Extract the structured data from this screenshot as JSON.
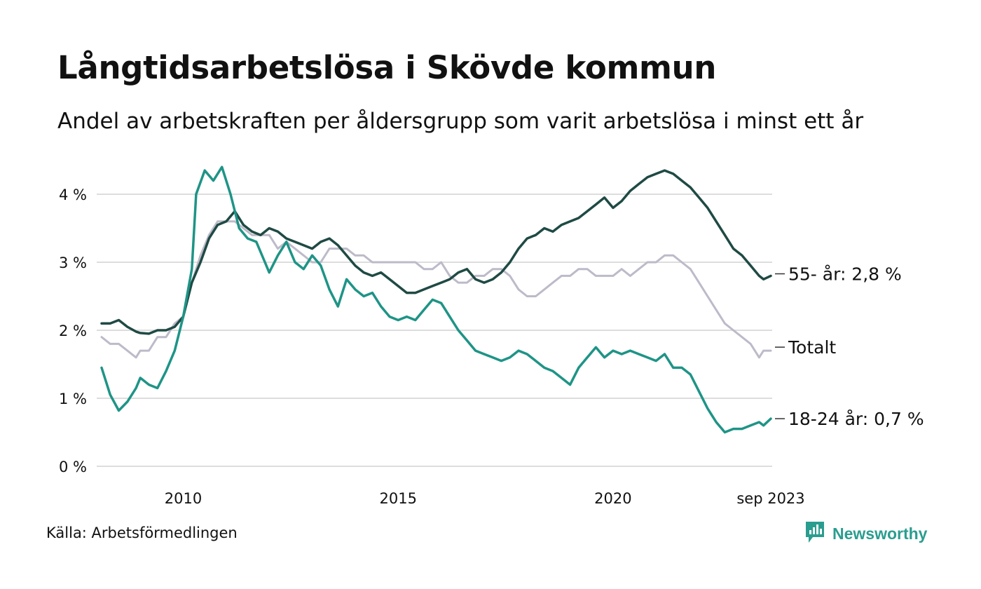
{
  "header": {
    "title": "Långtidsarbetslösa i Skövde kommun",
    "subtitle": "Andel av arbetskraften per åldersgrupp som varit arbetslösa i minst ett år"
  },
  "footer": {
    "source": "Källa: Arbetsförmedlingen",
    "brand": "Newsworthy"
  },
  "colors": {
    "s55": "#1f4a44",
    "total": "#bdbac9",
    "young": "#1e9486",
    "grid": "#dddddd",
    "brand": "#2a9d8f"
  },
  "icons": {
    "brand_logo": "newsworthy-logo-icon"
  },
  "chart_data": {
    "type": "line",
    "title": "Långtidsarbetslösa i Skövde kommun",
    "subtitle": "Andel av arbetskraften per åldersgrupp som varit arbetslösa i minst ett år",
    "xlabel": "",
    "ylabel": "",
    "xlim": [
      2008.1,
      2023.67
    ],
    "ylim": [
      0,
      4.4
    ],
    "x_ticks": [
      {
        "value": 2010,
        "label": "2010"
      },
      {
        "value": 2015,
        "label": "2015"
      },
      {
        "value": 2020,
        "label": "2020"
      },
      {
        "value": 2023.67,
        "label": "sep 2023"
      }
    ],
    "y_ticks": [
      {
        "value": 0,
        "label": "0 %"
      },
      {
        "value": 1,
        "label": "1 %"
      },
      {
        "value": 2,
        "label": "2 %"
      },
      {
        "value": 3,
        "label": "3 %"
      },
      {
        "value": 4,
        "label": "4 %"
      }
    ],
    "grid": true,
    "series": [
      {
        "name": "Totalt",
        "label": "Totalt",
        "color_key": "total",
        "points": [
          [
            2008.1,
            1.9
          ],
          [
            2008.3,
            1.8
          ],
          [
            2008.5,
            1.8
          ],
          [
            2008.7,
            1.7
          ],
          [
            2008.9,
            1.6
          ],
          [
            2009.0,
            1.7
          ],
          [
            2009.2,
            1.7
          ],
          [
            2009.4,
            1.9
          ],
          [
            2009.6,
            1.9
          ],
          [
            2009.8,
            2.1
          ],
          [
            2010.0,
            2.2
          ],
          [
            2010.2,
            2.7
          ],
          [
            2010.4,
            3.1
          ],
          [
            2010.6,
            3.4
          ],
          [
            2010.8,
            3.6
          ],
          [
            2011.0,
            3.6
          ],
          [
            2011.2,
            3.6
          ],
          [
            2011.4,
            3.5
          ],
          [
            2011.6,
            3.4
          ],
          [
            2011.8,
            3.4
          ],
          [
            2012.0,
            3.4
          ],
          [
            2012.2,
            3.2
          ],
          [
            2012.4,
            3.3
          ],
          [
            2012.6,
            3.2
          ],
          [
            2012.8,
            3.1
          ],
          [
            2013.0,
            3.0
          ],
          [
            2013.2,
            3.0
          ],
          [
            2013.4,
            3.2
          ],
          [
            2013.6,
            3.2
          ],
          [
            2013.8,
            3.2
          ],
          [
            2014.0,
            3.1
          ],
          [
            2014.2,
            3.1
          ],
          [
            2014.4,
            3.0
          ],
          [
            2014.6,
            3.0
          ],
          [
            2014.8,
            3.0
          ],
          [
            2015.0,
            3.0
          ],
          [
            2015.2,
            3.0
          ],
          [
            2015.4,
            3.0
          ],
          [
            2015.6,
            2.9
          ],
          [
            2015.8,
            2.9
          ],
          [
            2016.0,
            3.0
          ],
          [
            2016.2,
            2.8
          ],
          [
            2016.4,
            2.7
          ],
          [
            2016.6,
            2.7
          ],
          [
            2016.8,
            2.8
          ],
          [
            2017.0,
            2.8
          ],
          [
            2017.2,
            2.9
          ],
          [
            2017.4,
            2.9
          ],
          [
            2017.6,
            2.8
          ],
          [
            2017.8,
            2.6
          ],
          [
            2018.0,
            2.5
          ],
          [
            2018.2,
            2.5
          ],
          [
            2018.4,
            2.6
          ],
          [
            2018.6,
            2.7
          ],
          [
            2018.8,
            2.8
          ],
          [
            2019.0,
            2.8
          ],
          [
            2019.2,
            2.9
          ],
          [
            2019.4,
            2.9
          ],
          [
            2019.6,
            2.8
          ],
          [
            2019.8,
            2.8
          ],
          [
            2020.0,
            2.8
          ],
          [
            2020.2,
            2.9
          ],
          [
            2020.4,
            2.8
          ],
          [
            2020.6,
            2.9
          ],
          [
            2020.8,
            3.0
          ],
          [
            2021.0,
            3.0
          ],
          [
            2021.2,
            3.1
          ],
          [
            2021.4,
            3.1
          ],
          [
            2021.6,
            3.0
          ],
          [
            2021.8,
            2.9
          ],
          [
            2022.0,
            2.7
          ],
          [
            2022.2,
            2.5
          ],
          [
            2022.4,
            2.3
          ],
          [
            2022.6,
            2.1
          ],
          [
            2022.8,
            2.0
          ],
          [
            2023.0,
            1.9
          ],
          [
            2023.2,
            1.8
          ],
          [
            2023.4,
            1.6
          ],
          [
            2023.5,
            1.7
          ],
          [
            2023.67,
            1.7
          ]
        ]
      },
      {
        "name": "55- år",
        "label": "55- år: 2,8 %",
        "color_key": "s55",
        "points": [
          [
            2008.1,
            2.1
          ],
          [
            2008.3,
            2.1
          ],
          [
            2008.5,
            2.15
          ],
          [
            2008.7,
            2.05
          ],
          [
            2008.9,
            1.98
          ],
          [
            2009.0,
            1.96
          ],
          [
            2009.2,
            1.95
          ],
          [
            2009.4,
            2.0
          ],
          [
            2009.6,
            2.0
          ],
          [
            2009.8,
            2.05
          ],
          [
            2010.0,
            2.2
          ],
          [
            2010.2,
            2.7
          ],
          [
            2010.4,
            3.0
          ],
          [
            2010.6,
            3.35
          ],
          [
            2010.8,
            3.55
          ],
          [
            2011.0,
            3.6
          ],
          [
            2011.2,
            3.75
          ],
          [
            2011.4,
            3.55
          ],
          [
            2011.6,
            3.45
          ],
          [
            2011.8,
            3.4
          ],
          [
            2012.0,
            3.5
          ],
          [
            2012.2,
            3.45
          ],
          [
            2012.4,
            3.35
          ],
          [
            2012.6,
            3.3
          ],
          [
            2012.8,
            3.25
          ],
          [
            2013.0,
            3.2
          ],
          [
            2013.2,
            3.3
          ],
          [
            2013.4,
            3.35
          ],
          [
            2013.6,
            3.25
          ],
          [
            2013.8,
            3.1
          ],
          [
            2014.0,
            2.95
          ],
          [
            2014.2,
            2.85
          ],
          [
            2014.4,
            2.8
          ],
          [
            2014.6,
            2.85
          ],
          [
            2014.8,
            2.75
          ],
          [
            2015.0,
            2.65
          ],
          [
            2015.2,
            2.55
          ],
          [
            2015.4,
            2.55
          ],
          [
            2015.6,
            2.6
          ],
          [
            2015.8,
            2.65
          ],
          [
            2016.0,
            2.7
          ],
          [
            2016.2,
            2.75
          ],
          [
            2016.4,
            2.85
          ],
          [
            2016.6,
            2.9
          ],
          [
            2016.8,
            2.75
          ],
          [
            2017.0,
            2.7
          ],
          [
            2017.2,
            2.75
          ],
          [
            2017.4,
            2.85
          ],
          [
            2017.6,
            3.0
          ],
          [
            2017.8,
            3.2
          ],
          [
            2018.0,
            3.35
          ],
          [
            2018.2,
            3.4
          ],
          [
            2018.4,
            3.5
          ],
          [
            2018.6,
            3.45
          ],
          [
            2018.8,
            3.55
          ],
          [
            2019.0,
            3.6
          ],
          [
            2019.2,
            3.65
          ],
          [
            2019.4,
            3.75
          ],
          [
            2019.6,
            3.85
          ],
          [
            2019.8,
            3.95
          ],
          [
            2020.0,
            3.8
          ],
          [
            2020.2,
            3.9
          ],
          [
            2020.4,
            4.05
          ],
          [
            2020.6,
            4.15
          ],
          [
            2020.8,
            4.25
          ],
          [
            2021.0,
            4.3
          ],
          [
            2021.2,
            4.35
          ],
          [
            2021.4,
            4.3
          ],
          [
            2021.6,
            4.2
          ],
          [
            2021.8,
            4.1
          ],
          [
            2022.0,
            3.95
          ],
          [
            2022.2,
            3.8
          ],
          [
            2022.4,
            3.6
          ],
          [
            2022.6,
            3.4
          ],
          [
            2022.8,
            3.2
          ],
          [
            2023.0,
            3.1
          ],
          [
            2023.2,
            2.95
          ],
          [
            2023.4,
            2.8
          ],
          [
            2023.5,
            2.75
          ],
          [
            2023.67,
            2.8
          ]
        ]
      },
      {
        "name": "18-24 år",
        "label": "18-24 år: 0,7 %",
        "color_key": "young",
        "points": [
          [
            2008.1,
            1.45
          ],
          [
            2008.3,
            1.05
          ],
          [
            2008.5,
            0.82
          ],
          [
            2008.7,
            0.95
          ],
          [
            2008.9,
            1.15
          ],
          [
            2009.0,
            1.3
          ],
          [
            2009.2,
            1.2
          ],
          [
            2009.4,
            1.15
          ],
          [
            2009.6,
            1.4
          ],
          [
            2009.8,
            1.7
          ],
          [
            2010.0,
            2.2
          ],
          [
            2010.2,
            2.9
          ],
          [
            2010.3,
            4.0
          ],
          [
            2010.5,
            4.35
          ],
          [
            2010.7,
            4.2
          ],
          [
            2010.9,
            4.4
          ],
          [
            2011.1,
            4.0
          ],
          [
            2011.3,
            3.5
          ],
          [
            2011.5,
            3.35
          ],
          [
            2011.7,
            3.3
          ],
          [
            2011.9,
            3.0
          ],
          [
            2012.0,
            2.85
          ],
          [
            2012.2,
            3.1
          ],
          [
            2012.4,
            3.3
          ],
          [
            2012.6,
            3.0
          ],
          [
            2012.8,
            2.9
          ],
          [
            2013.0,
            3.1
          ],
          [
            2013.2,
            2.95
          ],
          [
            2013.4,
            2.6
          ],
          [
            2013.6,
            2.35
          ],
          [
            2013.8,
            2.75
          ],
          [
            2014.0,
            2.6
          ],
          [
            2014.2,
            2.5
          ],
          [
            2014.4,
            2.55
          ],
          [
            2014.6,
            2.35
          ],
          [
            2014.8,
            2.2
          ],
          [
            2015.0,
            2.15
          ],
          [
            2015.2,
            2.2
          ],
          [
            2015.4,
            2.15
          ],
          [
            2015.6,
            2.3
          ],
          [
            2015.8,
            2.45
          ],
          [
            2016.0,
            2.4
          ],
          [
            2016.2,
            2.2
          ],
          [
            2016.4,
            2.0
          ],
          [
            2016.6,
            1.85
          ],
          [
            2016.8,
            1.7
          ],
          [
            2017.0,
            1.65
          ],
          [
            2017.2,
            1.6
          ],
          [
            2017.4,
            1.55
          ],
          [
            2017.6,
            1.6
          ],
          [
            2017.8,
            1.7
          ],
          [
            2018.0,
            1.65
          ],
          [
            2018.2,
            1.55
          ],
          [
            2018.4,
            1.45
          ],
          [
            2018.6,
            1.4
          ],
          [
            2018.8,
            1.3
          ],
          [
            2019.0,
            1.2
          ],
          [
            2019.2,
            1.45
          ],
          [
            2019.4,
            1.6
          ],
          [
            2019.6,
            1.75
          ],
          [
            2019.8,
            1.6
          ],
          [
            2020.0,
            1.7
          ],
          [
            2020.2,
            1.65
          ],
          [
            2020.4,
            1.7
          ],
          [
            2020.6,
            1.65
          ],
          [
            2020.8,
            1.6
          ],
          [
            2021.0,
            1.55
          ],
          [
            2021.2,
            1.65
          ],
          [
            2021.4,
            1.45
          ],
          [
            2021.6,
            1.45
          ],
          [
            2021.8,
            1.35
          ],
          [
            2022.0,
            1.1
          ],
          [
            2022.2,
            0.85
          ],
          [
            2022.4,
            0.65
          ],
          [
            2022.6,
            0.5
          ],
          [
            2022.8,
            0.55
          ],
          [
            2023.0,
            0.55
          ],
          [
            2023.2,
            0.6
          ],
          [
            2023.4,
            0.65
          ],
          [
            2023.5,
            0.6
          ],
          [
            2023.67,
            0.7
          ]
        ]
      }
    ]
  }
}
